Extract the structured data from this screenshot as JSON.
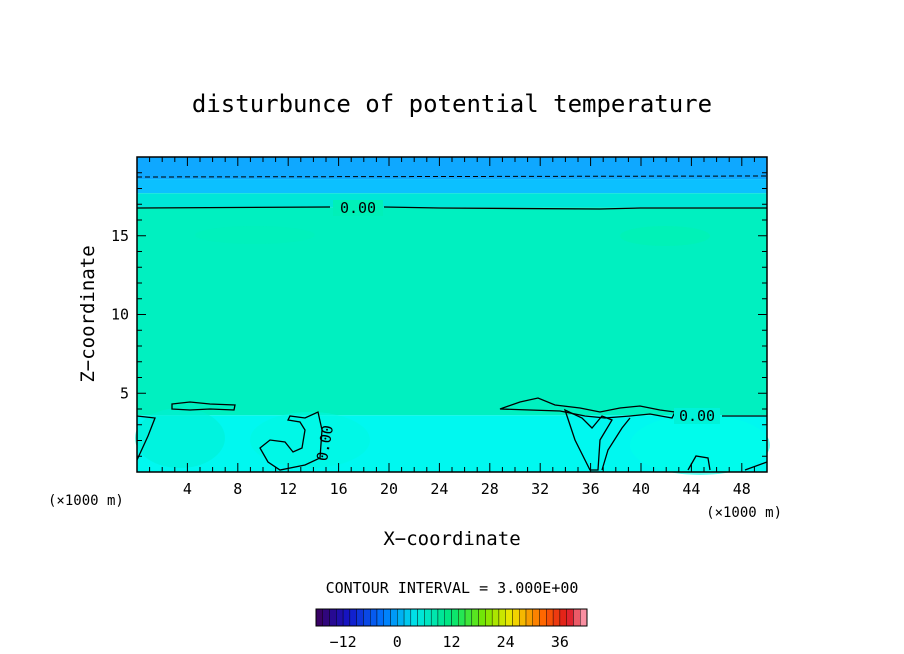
{
  "chart_data": {
    "type": "heatmap",
    "title": "disturbunce of potential temperature",
    "xlabel": "X−coordinate",
    "ylabel": "Z−coordinate",
    "x_unit_left": "(×1000 m)",
    "x_unit_right": "(×1000 m)",
    "xlim": [
      0,
      50
    ],
    "ylim": [
      0,
      20
    ],
    "xticks": [
      4,
      8,
      12,
      16,
      20,
      24,
      28,
      32,
      36,
      40,
      44,
      48
    ],
    "yticks": [
      5,
      10,
      15
    ],
    "contour_interval_text": "CONTOUR INTERVAL = 3.000E+00",
    "contour_labels": [
      {
        "text": "0.00",
        "x": 17.5,
        "z": 16.7
      },
      {
        "text": "0.00",
        "x": 44.5,
        "z": 3.6
      },
      {
        "text": "0.00",
        "x": 15.0,
        "z": 1.9
      }
    ],
    "field_bands": [
      {
        "z_from": 18.6,
        "z_to": 20,
        "level": -4
      },
      {
        "z_from": 17.7,
        "z_to": 18.6,
        "level": -3
      },
      {
        "z_from": 16.8,
        "z_to": 17.7,
        "level": -1
      },
      {
        "z_from": 3.6,
        "z_to": 16.8,
        "level": 1
      },
      {
        "z_from": 0,
        "z_to": 3.6,
        "level": 0
      }
    ],
    "colorbar": {
      "min": -18,
      "max": 42,
      "ticks": [
        -12,
        0,
        12,
        24,
        36
      ]
    }
  }
}
